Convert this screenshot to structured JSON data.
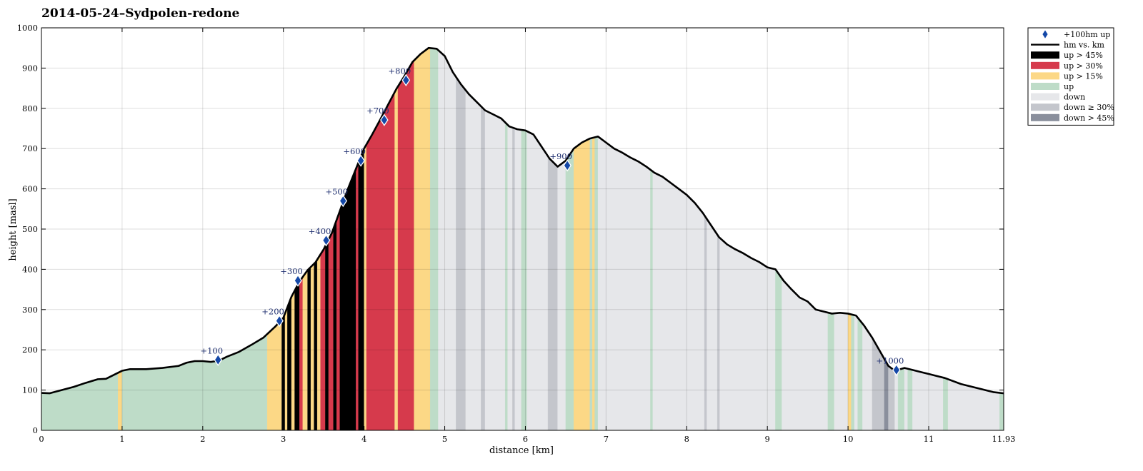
{
  "chart_data": {
    "type": "area",
    "title": "2014-05-24–Sydpolen-redone",
    "xlabel": "distance [km]",
    "ylabel": "height [masl]",
    "xlim": [
      0,
      11.93
    ],
    "ylim": [
      0,
      1000
    ],
    "grid": true,
    "legend_placement": "outside-top-right",
    "x_ticks": [
      "0",
      "1",
      "2",
      "3",
      "4",
      "5",
      "6",
      "7",
      "8",
      "9",
      "10",
      "11",
      "11.93"
    ],
    "x_tick_values": [
      0,
      1,
      2,
      3,
      4,
      5,
      6,
      7,
      8,
      9,
      10,
      11,
      11.93
    ],
    "y_ticks": [
      "0",
      "100",
      "200",
      "300",
      "400",
      "500",
      "600",
      "700",
      "800",
      "900",
      "1000"
    ],
    "y_tick_values": [
      0,
      100,
      200,
      300,
      400,
      500,
      600,
      700,
      800,
      900,
      1000
    ],
    "profile": {
      "name": "hm vs. km",
      "x": [
        0,
        0.1,
        0.25,
        0.4,
        0.55,
        0.7,
        0.8,
        0.9,
        1.0,
        1.1,
        1.2,
        1.3,
        1.5,
        1.7,
        1.8,
        1.9,
        2.0,
        2.1,
        2.2,
        2.3,
        2.45,
        2.6,
        2.75,
        2.9,
        3.0,
        3.1,
        3.2,
        3.3,
        3.4,
        3.5,
        3.6,
        3.7,
        3.8,
        3.9,
        4.0,
        4.1,
        4.2,
        4.3,
        4.4,
        4.5,
        4.6,
        4.7,
        4.8,
        4.9,
        5.0,
        5.1,
        5.2,
        5.3,
        5.4,
        5.5,
        5.6,
        5.7,
        5.8,
        5.9,
        6.0,
        6.1,
        6.2,
        6.3,
        6.4,
        6.5,
        6.6,
        6.7,
        6.8,
        6.9,
        7.0,
        7.1,
        7.2,
        7.3,
        7.4,
        7.5,
        7.6,
        7.7,
        7.8,
        7.9,
        8.0,
        8.1,
        8.2,
        8.3,
        8.4,
        8.5,
        8.6,
        8.7,
        8.8,
        8.9,
        9.0,
        9.1,
        9.2,
        9.3,
        9.4,
        9.5,
        9.6,
        9.7,
        9.8,
        9.9,
        10.0,
        10.1,
        10.2,
        10.3,
        10.4,
        10.5,
        10.6,
        10.65,
        10.7,
        10.8,
        10.9,
        11.0,
        11.1,
        11.2,
        11.4,
        11.6,
        11.8,
        11.93
      ],
      "y": [
        93,
        92,
        100,
        108,
        118,
        127,
        128,
        138,
        148,
        152,
        152,
        152,
        155,
        160,
        168,
        172,
        172,
        170,
        173,
        183,
        195,
        212,
        230,
        258,
        280,
        332,
        370,
        398,
        418,
        450,
        490,
        545,
        600,
        650,
        700,
        735,
        772,
        810,
        848,
        880,
        915,
        935,
        950,
        948,
        930,
        890,
        860,
        835,
        815,
        795,
        785,
        775,
        755,
        748,
        745,
        735,
        705,
        675,
        655,
        670,
        700,
        715,
        725,
        730,
        715,
        700,
        690,
        678,
        668,
        655,
        640,
        630,
        615,
        600,
        585,
        565,
        540,
        510,
        480,
        462,
        450,
        440,
        428,
        418,
        405,
        400,
        372,
        350,
        330,
        320,
        300,
        295,
        290,
        292,
        290,
        285,
        260,
        230,
        195,
        160,
        145,
        152,
        155,
        150,
        145,
        140,
        135,
        130,
        115,
        105,
        95,
        92
      ]
    },
    "markers": {
      "name": "+100hm up",
      "labels": [
        "+100",
        "+200",
        "+300",
        "+400",
        "+500",
        "+600",
        "+700",
        "+800",
        "+900",
        "+1000"
      ],
      "x": [
        2.19,
        2.95,
        3.18,
        3.53,
        3.74,
        3.96,
        4.25,
        4.52,
        6.52,
        10.6
      ],
      "y": [
        175,
        272,
        372,
        472,
        570,
        670,
        771,
        870,
        658,
        150
      ]
    },
    "segments": [
      {
        "x0": 0,
        "x1": 0.95,
        "cat": "up"
      },
      {
        "x0": 0.95,
        "x1": 1.0,
        "cat": "up15"
      },
      {
        "x0": 1.0,
        "x1": 2.22,
        "cat": "up"
      },
      {
        "x0": 2.22,
        "x1": 2.8,
        "cat": "up"
      },
      {
        "x0": 2.8,
        "x1": 2.98,
        "cat": "up15"
      },
      {
        "x0": 2.98,
        "x1": 3.02,
        "cat": "up45"
      },
      {
        "x0": 3.02,
        "x1": 3.05,
        "cat": "up15"
      },
      {
        "x0": 3.05,
        "x1": 3.1,
        "cat": "up45"
      },
      {
        "x0": 3.1,
        "x1": 3.14,
        "cat": "up15"
      },
      {
        "x0": 3.14,
        "x1": 3.2,
        "cat": "up45"
      },
      {
        "x0": 3.2,
        "x1": 3.24,
        "cat": "up30"
      },
      {
        "x0": 3.24,
        "x1": 3.3,
        "cat": "up15"
      },
      {
        "x0": 3.3,
        "x1": 3.34,
        "cat": "up45"
      },
      {
        "x0": 3.34,
        "x1": 3.38,
        "cat": "up15"
      },
      {
        "x0": 3.38,
        "x1": 3.42,
        "cat": "up45"
      },
      {
        "x0": 3.42,
        "x1": 3.46,
        "cat": "up15"
      },
      {
        "x0": 3.46,
        "x1": 3.52,
        "cat": "up30"
      },
      {
        "x0": 3.52,
        "x1": 3.56,
        "cat": "up45"
      },
      {
        "x0": 3.56,
        "x1": 3.62,
        "cat": "up30"
      },
      {
        "x0": 3.62,
        "x1": 3.66,
        "cat": "up45"
      },
      {
        "x0": 3.66,
        "x1": 3.7,
        "cat": "up30"
      },
      {
        "x0": 3.7,
        "x1": 3.9,
        "cat": "up45"
      },
      {
        "x0": 3.9,
        "x1": 3.93,
        "cat": "up30"
      },
      {
        "x0": 3.93,
        "x1": 4.0,
        "cat": "up45"
      },
      {
        "x0": 4.0,
        "x1": 4.03,
        "cat": "up15"
      },
      {
        "x0": 4.03,
        "x1": 4.38,
        "cat": "up30"
      },
      {
        "x0": 4.38,
        "x1": 4.42,
        "cat": "up15"
      },
      {
        "x0": 4.42,
        "x1": 4.62,
        "cat": "up30"
      },
      {
        "x0": 4.62,
        "x1": 4.82,
        "cat": "up15"
      },
      {
        "x0": 4.82,
        "x1": 4.92,
        "cat": "up"
      },
      {
        "x0": 4.92,
        "x1": 5.14,
        "cat": "down"
      },
      {
        "x0": 5.14,
        "x1": 5.26,
        "cat": "down30"
      },
      {
        "x0": 5.26,
        "x1": 5.45,
        "cat": "down"
      },
      {
        "x0": 5.45,
        "x1": 5.5,
        "cat": "down30"
      },
      {
        "x0": 5.5,
        "x1": 5.75,
        "cat": "down"
      },
      {
        "x0": 5.75,
        "x1": 5.78,
        "cat": "up"
      },
      {
        "x0": 5.78,
        "x1": 5.84,
        "cat": "down"
      },
      {
        "x0": 5.84,
        "x1": 5.87,
        "cat": "down30"
      },
      {
        "x0": 5.87,
        "x1": 5.95,
        "cat": "down"
      },
      {
        "x0": 5.95,
        "x1": 6.02,
        "cat": "up"
      },
      {
        "x0": 6.02,
        "x1": 6.28,
        "cat": "down"
      },
      {
        "x0": 6.28,
        "x1": 6.4,
        "cat": "down30"
      },
      {
        "x0": 6.4,
        "x1": 6.5,
        "cat": "down"
      },
      {
        "x0": 6.5,
        "x1": 6.6,
        "cat": "up"
      },
      {
        "x0": 6.6,
        "x1": 6.8,
        "cat": "up15"
      },
      {
        "x0": 6.8,
        "x1": 6.83,
        "cat": "up"
      },
      {
        "x0": 6.83,
        "x1": 6.86,
        "cat": "up15"
      },
      {
        "x0": 6.86,
        "x1": 6.9,
        "cat": "up"
      },
      {
        "x0": 6.9,
        "x1": 7.55,
        "cat": "down"
      },
      {
        "x0": 7.55,
        "x1": 7.58,
        "cat": "up"
      },
      {
        "x0": 7.58,
        "x1": 8.22,
        "cat": "down"
      },
      {
        "x0": 8.22,
        "x1": 8.25,
        "cat": "down30"
      },
      {
        "x0": 8.25,
        "x1": 8.38,
        "cat": "down"
      },
      {
        "x0": 8.38,
        "x1": 8.41,
        "cat": "down30"
      },
      {
        "x0": 8.41,
        "x1": 9.1,
        "cat": "down"
      },
      {
        "x0": 9.1,
        "x1": 9.18,
        "cat": "up"
      },
      {
        "x0": 9.18,
        "x1": 9.75,
        "cat": "down"
      },
      {
        "x0": 9.75,
        "x1": 9.83,
        "cat": "up"
      },
      {
        "x0": 9.83,
        "x1": 10.0,
        "cat": "down"
      },
      {
        "x0": 10.0,
        "x1": 10.04,
        "cat": "up15"
      },
      {
        "x0": 10.04,
        "x1": 10.08,
        "cat": "up"
      },
      {
        "x0": 10.08,
        "x1": 10.12,
        "cat": "down"
      },
      {
        "x0": 10.12,
        "x1": 10.18,
        "cat": "up"
      },
      {
        "x0": 10.18,
        "x1": 10.3,
        "cat": "down"
      },
      {
        "x0": 10.3,
        "x1": 10.45,
        "cat": "down30"
      },
      {
        "x0": 10.45,
        "x1": 10.5,
        "cat": "down45"
      },
      {
        "x0": 10.5,
        "x1": 10.58,
        "cat": "down30"
      },
      {
        "x0": 10.58,
        "x1": 10.62,
        "cat": "down"
      },
      {
        "x0": 10.62,
        "x1": 10.7,
        "cat": "up"
      },
      {
        "x0": 10.7,
        "x1": 10.74,
        "cat": "down"
      },
      {
        "x0": 10.74,
        "x1": 10.8,
        "cat": "up"
      },
      {
        "x0": 10.8,
        "x1": 11.18,
        "cat": "down"
      },
      {
        "x0": 11.18,
        "x1": 11.24,
        "cat": "up"
      },
      {
        "x0": 11.24,
        "x1": 11.88,
        "cat": "down"
      },
      {
        "x0": 11.88,
        "x1": 11.93,
        "cat": "up"
      }
    ],
    "legend": [
      {
        "key": "marker",
        "label": "+100hm up"
      },
      {
        "key": "line",
        "label": "hm vs. km"
      },
      {
        "key": "up45",
        "label": "up > 45%"
      },
      {
        "key": "up30",
        "label": "up > 30%"
      },
      {
        "key": "up15",
        "label": "up > 15%"
      },
      {
        "key": "up",
        "label": "up"
      },
      {
        "key": "down",
        "label": "down"
      },
      {
        "key": "down30",
        "label": "down ≥ 30%"
      },
      {
        "key": "down45",
        "label": "down > 45%"
      }
    ],
    "colors": {
      "up45": "#000000",
      "up30": "#d63a4c",
      "up15": "#fcd886",
      "up": "#bedcc8",
      "down": "#e6e7ea",
      "down30": "#c4c6cc",
      "down45": "#8a8f9c",
      "line": "#000000",
      "marker": "#1448a8"
    }
  }
}
